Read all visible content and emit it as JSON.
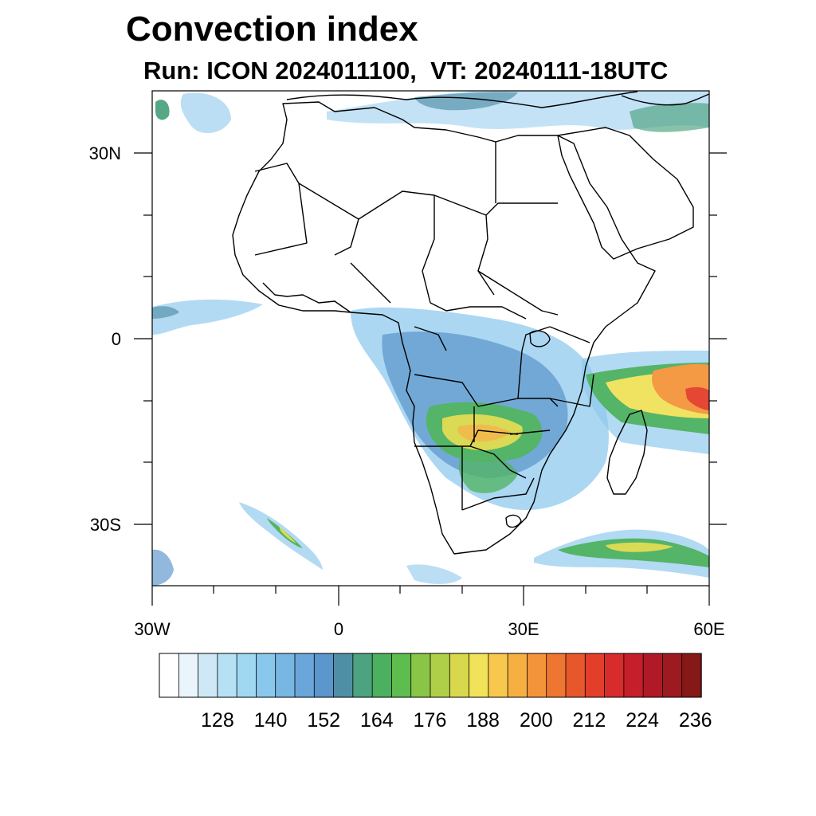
{
  "title": "Convection index",
  "subtitle": "Run: ICON 2024011100,  VT: 20240111-18UTC",
  "axes": {
    "lat_labels": [
      "30N",
      "0",
      "30S"
    ],
    "lon_labels": [
      "30W",
      "0",
      "30E",
      "60E"
    ],
    "lat_range": [
      -40,
      40
    ],
    "lon_range": [
      -30,
      60
    ]
  },
  "colorbar": {
    "colors": [
      "#ffffff",
      "#e9f4fb",
      "#cfe8f6",
      "#b6e0f4",
      "#a0d8f2",
      "#8ac7ec",
      "#78b6e3",
      "#6aa6d9",
      "#5b96cc",
      "#4f8fa6",
      "#4ca37f",
      "#4bb05f",
      "#5fbc4f",
      "#89c546",
      "#b0cf48",
      "#d8d84c",
      "#f1e25a",
      "#f7c84d",
      "#f6b042",
      "#f4943a",
      "#ef7631",
      "#e8572b",
      "#e33e2a",
      "#d82b2b",
      "#c41f2b",
      "#b01a27",
      "#9c1a20",
      "#861818"
    ],
    "labels": [
      "128",
      "140",
      "152",
      "164",
      "176",
      "188",
      "200",
      "212",
      "224",
      "236"
    ]
  },
  "colors": {
    "low": "#8ac7ec",
    "mid": "#4ca37f",
    "high": "#f1e25a",
    "extreme": "#e33e2a",
    "coast": "#000000"
  }
}
